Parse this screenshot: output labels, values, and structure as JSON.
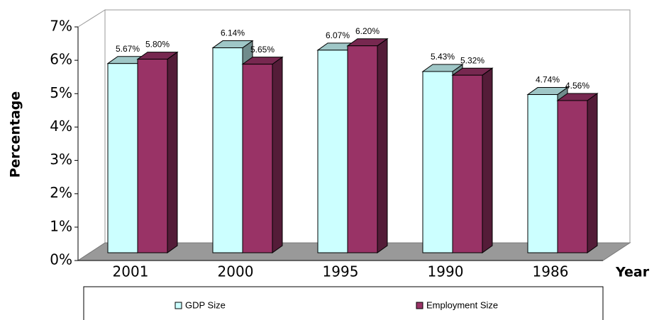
{
  "chart_data": {
    "type": "bar",
    "x_label": "Year",
    "y_label": "Percentage",
    "categories": [
      "2001",
      "2000",
      "1995",
      "1990",
      "1986"
    ],
    "series": [
      {
        "name": "GDP Size",
        "color": "#ccffff",
        "values": [
          5.67,
          6.14,
          6.07,
          5.43,
          4.74
        ],
        "value_labels": [
          "5.67%",
          "6.14%",
          "6.07%",
          "5.43%",
          "4.74%"
        ]
      },
      {
        "name": "Employment Size",
        "color": "#993366",
        "values": [
          5.8,
          5.65,
          6.2,
          5.32,
          4.56
        ],
        "value_labels": [
          "5.80%",
          "5.65%",
          "6.20%",
          "5.32%",
          "4.56%"
        ]
      }
    ],
    "ylim": [
      0,
      7
    ],
    "yticks": [
      {
        "value": 0,
        "label": "0%"
      },
      {
        "value": 1,
        "label": "1%"
      },
      {
        "value": 2,
        "label": "2%"
      },
      {
        "value": 3,
        "label": "3%"
      },
      {
        "value": 4,
        "label": "4%"
      },
      {
        "value": 5,
        "label": "5%"
      },
      {
        "value": 6,
        "label": "6%"
      },
      {
        "value": 7,
        "label": "7%"
      }
    ],
    "grid": false,
    "legend": "bottom"
  }
}
